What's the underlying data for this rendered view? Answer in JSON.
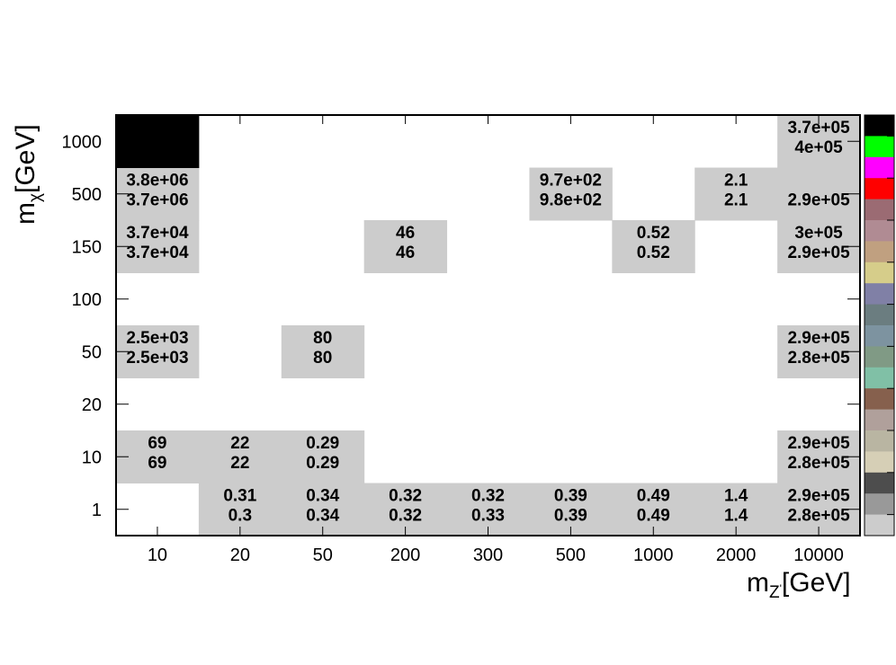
{
  "chart_data": {
    "type": "heatmap",
    "title": "",
    "xlabel": "m_{Z'}[GeV]",
    "ylabel": "m_{χ}[GeV]",
    "x_categories": [
      "10",
      "20",
      "50",
      "200",
      "300",
      "500",
      "1000",
      "2000",
      "10000"
    ],
    "y_categories": [
      "1",
      "10",
      "20",
      "50",
      "100",
      "150",
      "500",
      "1000"
    ],
    "cells": [
      {
        "x": "20",
        "y": "1",
        "values": [
          "0.31",
          "0.3"
        ]
      },
      {
        "x": "50",
        "y": "1",
        "values": [
          "0.34",
          "0.34"
        ]
      },
      {
        "x": "200",
        "y": "1",
        "values": [
          "0.32",
          "0.32"
        ]
      },
      {
        "x": "300",
        "y": "1",
        "values": [
          "0.32",
          "0.33"
        ]
      },
      {
        "x": "500",
        "y": "1",
        "values": [
          "0.39",
          "0.39"
        ]
      },
      {
        "x": "1000",
        "y": "1",
        "values": [
          "0.49",
          "0.49"
        ]
      },
      {
        "x": "2000",
        "y": "1",
        "values": [
          "1.4",
          "1.4"
        ]
      },
      {
        "x": "10000",
        "y": "1",
        "values": [
          "2.9e+05",
          "2.8e+05"
        ]
      },
      {
        "x": "10",
        "y": "10",
        "values": [
          "69",
          "69"
        ]
      },
      {
        "x": "20",
        "y": "10",
        "values": [
          "22",
          "22"
        ]
      },
      {
        "x": "50",
        "y": "10",
        "values": [
          "0.29",
          "0.29"
        ]
      },
      {
        "x": "10000",
        "y": "10",
        "values": [
          "2.9e+05",
          "2.8e+05"
        ]
      },
      {
        "x": "10",
        "y": "50",
        "values": [
          "2.5e+03",
          "2.5e+03"
        ]
      },
      {
        "x": "50",
        "y": "50",
        "values": [
          "80",
          "80"
        ]
      },
      {
        "x": "10000",
        "y": "50",
        "values": [
          "2.9e+05",
          "2.8e+05"
        ]
      },
      {
        "x": "10",
        "y": "150",
        "values": [
          "3.7e+04",
          "3.7e+04"
        ]
      },
      {
        "x": "200",
        "y": "150",
        "values": [
          "46",
          "46"
        ]
      },
      {
        "x": "1000",
        "y": "150",
        "values": [
          "0.52",
          "0.52"
        ]
      },
      {
        "x": "10000",
        "y": "150",
        "values": [
          "3e+05",
          "2.9e+05"
        ]
      },
      {
        "x": "10",
        "y": "500",
        "values": [
          "3.8e+06",
          "3.7e+06"
        ]
      },
      {
        "x": "500",
        "y": "500",
        "values": [
          "9.7e+02",
          "9.8e+02"
        ]
      },
      {
        "x": "2000",
        "y": "500",
        "values": [
          "2.1",
          "2.1"
        ]
      },
      {
        "x": "10000",
        "y": "500",
        "values": [
          "",
          "2.9e+05"
        ]
      },
      {
        "x": "10",
        "y": "1000",
        "values": [
          "",
          ""
        ],
        "fill": "black"
      },
      {
        "x": "10000",
        "y": "1000",
        "values": [
          "3.7e+05",
          "4e+05"
        ]
      }
    ],
    "cell_fill_color": "#cccccc",
    "palette_colors": [
      "#000000",
      "#00ff00",
      "#ff00ff",
      "#ff0000",
      "#9b6b73",
      "#b08b93",
      "#c0a080",
      "#d6cd8a",
      "#8080a6",
      "#6b7d80",
      "#7d93a0",
      "#809a85",
      "#80c0a6",
      "#86604d",
      "#b0a09b",
      "#b9b5a2",
      "#d6cfb6",
      "#4d4d4d",
      "#999999",
      "#cccccc"
    ]
  }
}
